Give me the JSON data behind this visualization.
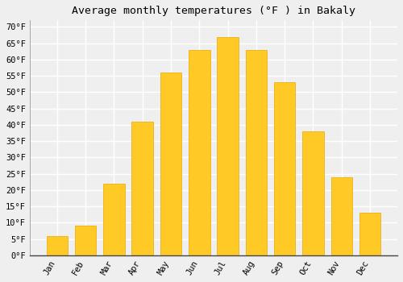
{
  "title": "Average monthly temperatures (°F ) in Bakaly",
  "months": [
    "Jan",
    "Feb",
    "Mar",
    "Apr",
    "May",
    "Jun",
    "Jul",
    "Aug",
    "Sep",
    "Oct",
    "Nov",
    "Dec"
  ],
  "values": [
    6,
    9,
    22,
    41,
    56,
    63,
    67,
    63,
    53,
    38,
    24,
    13
  ],
  "bar_color": "#FFC926",
  "bar_edge_color": "#E8A800",
  "background_color": "#efefef",
  "grid_color": "#ffffff",
  "ylim": [
    0,
    72
  ],
  "yticks": [
    0,
    5,
    10,
    15,
    20,
    25,
    30,
    35,
    40,
    45,
    50,
    55,
    60,
    65,
    70
  ],
  "title_fontsize": 9.5,
  "tick_fontsize": 7.5
}
